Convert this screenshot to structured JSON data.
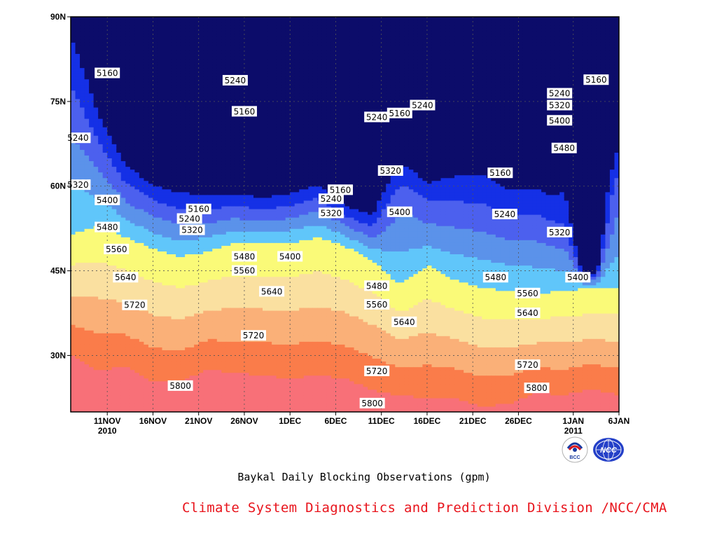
{
  "chart_data": {
    "type": "contour",
    "caption": "Baykal Daily Blocking Observations (gpm)",
    "credit": "Climate System Diagnostics and Prediction Division /NCC/CMA",
    "y_ticks": [
      "30N",
      "45N",
      "60N",
      "75N",
      "90N"
    ],
    "y_tick_values": [
      30,
      45,
      60,
      75,
      90
    ],
    "ylim": [
      20,
      90
    ],
    "x_ticks": [
      {
        "label": "11NOV",
        "year": "2010",
        "day": 4
      },
      {
        "label": "16NOV",
        "year": "",
        "day": 9
      },
      {
        "label": "21NOV",
        "year": "",
        "day": 14
      },
      {
        "label": "26NOV",
        "year": "",
        "day": 19
      },
      {
        "label": "1DEC",
        "year": "",
        "day": 24
      },
      {
        "label": "6DEC",
        "year": "",
        "day": 29
      },
      {
        "label": "11DEC",
        "year": "",
        "day": 34
      },
      {
        "label": "16DEC",
        "year": "",
        "day": 39
      },
      {
        "label": "21DEC",
        "year": "",
        "day": 44
      },
      {
        "label": "26DEC",
        "year": "",
        "day": 49
      },
      {
        "label": "1JAN",
        "year": "2011",
        "day": 55
      },
      {
        "label": "6JAN",
        "year": "",
        "day": 60
      }
    ],
    "xlim": [
      0,
      60
    ],
    "levels": [
      5160,
      5240,
      5320,
      5400,
      5480,
      5560,
      5640,
      5720,
      5800
    ],
    "fill_colors": [
      "#0c0c6a",
      "#1530e6",
      "#4c60ee",
      "#5b92ea",
      "#60c6fa",
      "#fafa78",
      "#fae0a0",
      "#fab078",
      "#fa7c4a",
      "#f87078"
    ],
    "contour_labels": [
      {
        "text": "5160",
        "day": 4,
        "lat": 80.0
      },
      {
        "text": "5240",
        "day": 18,
        "lat": 78.7
      },
      {
        "text": "5160",
        "day": 19,
        "lat": 73.2
      },
      {
        "text": "5240",
        "day": 0.8,
        "lat": 68.5
      },
      {
        "text": "5320",
        "day": 0.8,
        "lat": 60.2
      },
      {
        "text": "5400",
        "day": 4,
        "lat": 57.5
      },
      {
        "text": "5480",
        "day": 4,
        "lat": 52.7
      },
      {
        "text": "5560",
        "day": 5,
        "lat": 48.8
      },
      {
        "text": "5640",
        "day": 6,
        "lat": 43.8
      },
      {
        "text": "5720",
        "day": 7,
        "lat": 38.9
      },
      {
        "text": "5800",
        "day": 12,
        "lat": 24.6
      },
      {
        "text": "5160",
        "day": 14,
        "lat": 55.9
      },
      {
        "text": "5240",
        "day": 13,
        "lat": 54.2
      },
      {
        "text": "5320",
        "day": 13.3,
        "lat": 52.2
      },
      {
        "text": "5480",
        "day": 19,
        "lat": 47.5
      },
      {
        "text": "5560",
        "day": 19,
        "lat": 45.0
      },
      {
        "text": "5720",
        "day": 20,
        "lat": 33.5
      },
      {
        "text": "5400",
        "day": 24,
        "lat": 47.5
      },
      {
        "text": "5640",
        "day": 22,
        "lat": 41.3
      },
      {
        "text": "5160",
        "day": 29.5,
        "lat": 59.3
      },
      {
        "text": "5240",
        "day": 28.5,
        "lat": 57.7
      },
      {
        "text": "5320",
        "day": 28.5,
        "lat": 55.2
      },
      {
        "text": "5240",
        "day": 33.5,
        "lat": 72.2
      },
      {
        "text": "5160",
        "day": 36,
        "lat": 72.9
      },
      {
        "text": "5240",
        "day": 38.5,
        "lat": 74.3
      },
      {
        "text": "5320",
        "day": 35,
        "lat": 62.7
      },
      {
        "text": "5400",
        "day": 36,
        "lat": 55.4
      },
      {
        "text": "5480",
        "day": 33.5,
        "lat": 42.3
      },
      {
        "text": "5560",
        "day": 33.5,
        "lat": 39.0
      },
      {
        "text": "5640",
        "day": 36.5,
        "lat": 35.9
      },
      {
        "text": "5720",
        "day": 33.5,
        "lat": 27.2
      },
      {
        "text": "5800",
        "day": 33,
        "lat": 21.5
      },
      {
        "text": "5160",
        "day": 47,
        "lat": 62.3
      },
      {
        "text": "5240",
        "day": 47.5,
        "lat": 55.0
      },
      {
        "text": "5480",
        "day": 46.5,
        "lat": 43.8
      },
      {
        "text": "5560",
        "day": 50,
        "lat": 41.0
      },
      {
        "text": "5640",
        "day": 50,
        "lat": 37.5
      },
      {
        "text": "5720",
        "day": 50,
        "lat": 28.3
      },
      {
        "text": "5800",
        "day": 51,
        "lat": 24.2
      },
      {
        "text": "5320",
        "day": 53.5,
        "lat": 51.8
      },
      {
        "text": "5400",
        "day": 55.5,
        "lat": 43.8
      },
      {
        "text": "5160",
        "day": 57.5,
        "lat": 78.8
      },
      {
        "text": "5240",
        "day": 53.5,
        "lat": 76.4
      },
      {
        "text": "5320",
        "day": 53.5,
        "lat": 74.3
      },
      {
        "text": "5400",
        "day": 53.5,
        "lat": 71.6
      },
      {
        "text": "5480",
        "day": 54,
        "lat": 66.7
      }
    ]
  },
  "logos": [
    {
      "name": "bcc-logo",
      "label": "BCC"
    },
    {
      "name": "ncc-logo",
      "label": "NCC"
    }
  ]
}
